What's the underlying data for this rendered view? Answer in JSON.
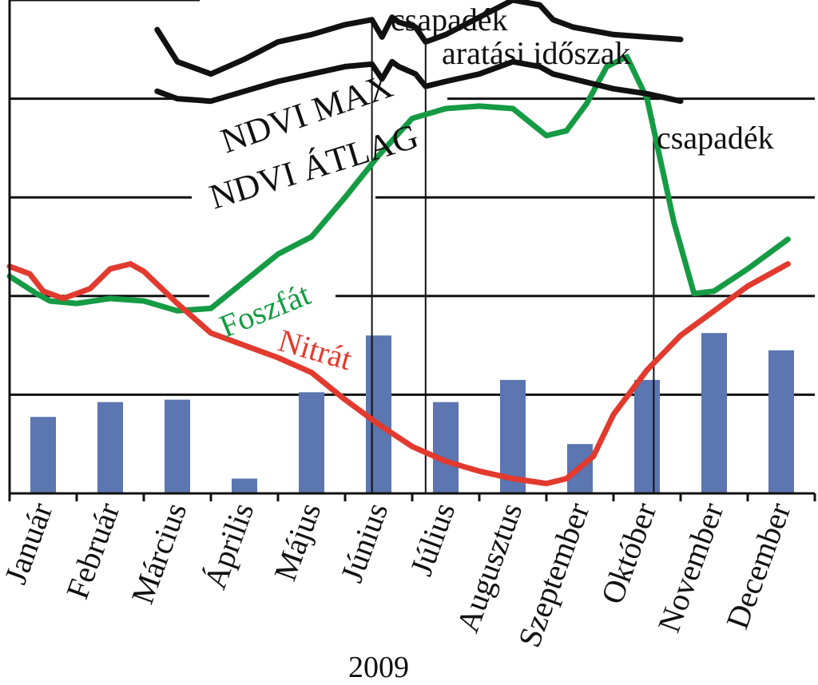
{
  "chart_data": {
    "type": "bar",
    "xlabel": "2009",
    "categories": [
      "Január",
      "Február",
      "Március",
      "Április",
      "Május",
      "Június",
      "Július",
      "Augusztus",
      "Szeptember",
      "Október",
      "November",
      "December"
    ],
    "values": [
      3.1,
      3.7,
      3.8,
      0.6,
      4.1,
      6.4,
      3.7,
      4.6,
      2.0,
      4.6,
      6.5,
      5.8
    ],
    "ylim": [
      0,
      20
    ],
    "grid": true,
    "curves": [
      {
        "name": "Foszfát",
        "color": "#159b44",
        "points": [
          [
            0.0,
            8.8
          ],
          [
            0.4,
            8.1
          ],
          [
            0.6,
            7.8
          ],
          [
            1.0,
            7.7
          ],
          [
            1.5,
            7.9
          ],
          [
            2.0,
            7.8
          ],
          [
            2.5,
            7.4
          ],
          [
            3.0,
            7.5
          ],
          [
            3.5,
            8.6
          ],
          [
            4.0,
            9.7
          ],
          [
            4.5,
            10.4
          ],
          [
            5.0,
            12.0
          ],
          [
            5.5,
            13.7
          ],
          [
            6.0,
            15.2
          ],
          [
            6.5,
            15.6
          ],
          [
            7.0,
            15.7
          ],
          [
            7.5,
            15.6
          ],
          [
            8.0,
            14.5
          ],
          [
            8.3,
            14.7
          ],
          [
            8.6,
            15.8
          ],
          [
            8.9,
            17.3
          ],
          [
            9.2,
            17.7
          ],
          [
            9.5,
            16.0
          ],
          [
            9.9,
            11.0
          ],
          [
            10.2,
            8.1
          ],
          [
            10.5,
            8.2
          ],
          [
            11.0,
            9.1
          ],
          [
            11.6,
            10.3
          ]
        ]
      },
      {
        "name": "Nitrát",
        "color": "#e23a2e",
        "points": [
          [
            0.0,
            9.2
          ],
          [
            0.3,
            8.9
          ],
          [
            0.5,
            8.2
          ],
          [
            0.8,
            7.9
          ],
          [
            1.2,
            8.3
          ],
          [
            1.5,
            9.1
          ],
          [
            1.8,
            9.3
          ],
          [
            2.0,
            9.0
          ],
          [
            2.5,
            7.7
          ],
          [
            3.0,
            6.5
          ],
          [
            3.5,
            6.0
          ],
          [
            4.0,
            5.5
          ],
          [
            4.5,
            4.9
          ],
          [
            5.0,
            3.8
          ],
          [
            5.5,
            2.8
          ],
          [
            6.0,
            1.9
          ],
          [
            6.5,
            1.3
          ],
          [
            7.0,
            0.9
          ],
          [
            7.5,
            0.6
          ],
          [
            8.0,
            0.4
          ],
          [
            8.3,
            0.6
          ],
          [
            8.7,
            1.5
          ],
          [
            9.0,
            3.2
          ],
          [
            9.5,
            5.0
          ],
          [
            10.0,
            6.4
          ],
          [
            10.5,
            7.4
          ],
          [
            11.0,
            8.4
          ],
          [
            11.6,
            9.3
          ]
        ]
      },
      {
        "name": "NDVI MAX",
        "color": "#111111",
        "points": [
          [
            2.2,
            18.8
          ],
          [
            2.5,
            17.5
          ],
          [
            3.0,
            17.0
          ],
          [
            3.5,
            17.6
          ],
          [
            4.0,
            18.3
          ],
          [
            4.5,
            18.6
          ],
          [
            5.0,
            19.0
          ],
          [
            5.4,
            19.2
          ],
          [
            5.55,
            18.5
          ],
          [
            5.7,
            19.3
          ],
          [
            5.8,
            19.1
          ],
          [
            6.05,
            18.9
          ],
          [
            6.2,
            18.3
          ],
          [
            6.5,
            18.6
          ],
          [
            7.0,
            19.3
          ],
          [
            7.5,
            20.0
          ],
          [
            7.9,
            19.8
          ],
          [
            8.1,
            19.2
          ],
          [
            8.4,
            18.9
          ],
          [
            9.0,
            18.6
          ],
          [
            9.5,
            18.5
          ],
          [
            10.0,
            18.4
          ]
        ]
      },
      {
        "name": "NDVI ÁTLAG",
        "color": "#111111",
        "points": [
          [
            2.2,
            16.3
          ],
          [
            2.5,
            16.0
          ],
          [
            3.0,
            15.9
          ],
          [
            3.5,
            16.3
          ],
          [
            4.0,
            16.7
          ],
          [
            4.5,
            17.0
          ],
          [
            5.0,
            17.3
          ],
          [
            5.4,
            17.4
          ],
          [
            5.55,
            16.8
          ],
          [
            5.7,
            17.5
          ],
          [
            5.8,
            17.3
          ],
          [
            6.05,
            17.0
          ],
          [
            6.2,
            16.5
          ],
          [
            6.5,
            16.7
          ],
          [
            7.0,
            17.0
          ],
          [
            7.5,
            17.5
          ],
          [
            7.9,
            17.3
          ],
          [
            8.1,
            17.0
          ],
          [
            8.4,
            16.8
          ],
          [
            9.0,
            16.4
          ],
          [
            9.5,
            16.2
          ],
          [
            10.0,
            15.9
          ]
        ]
      }
    ],
    "annotations": [
      {
        "text": "csapadék",
        "x": 5.4
      },
      {
        "text": "aratási időszak",
        "x": 6.2
      },
      {
        "text": "csapadék",
        "x": 9.6
      }
    ]
  },
  "colors": {
    "bar": "#5b76b0",
    "grid": "#111111",
    "text": "#111111"
  }
}
